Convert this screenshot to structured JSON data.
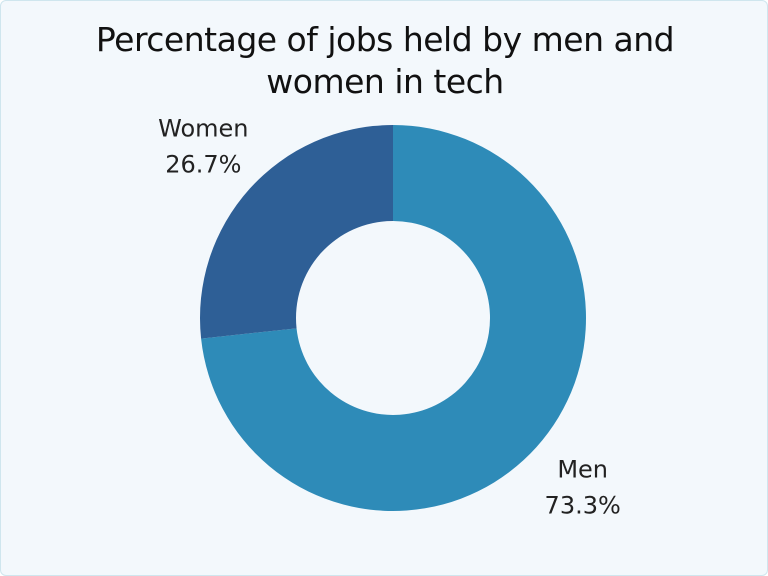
{
  "chart_data": {
    "type": "donut",
    "title": "Percentage of jobs held by men and women in tech",
    "categories": [
      "Men",
      "Women"
    ],
    "values": [
      73.3,
      26.7
    ],
    "value_labels": [
      "73.3%",
      "26.7%"
    ],
    "colors": [
      "#2e8bb8",
      "#2e5f96"
    ]
  }
}
